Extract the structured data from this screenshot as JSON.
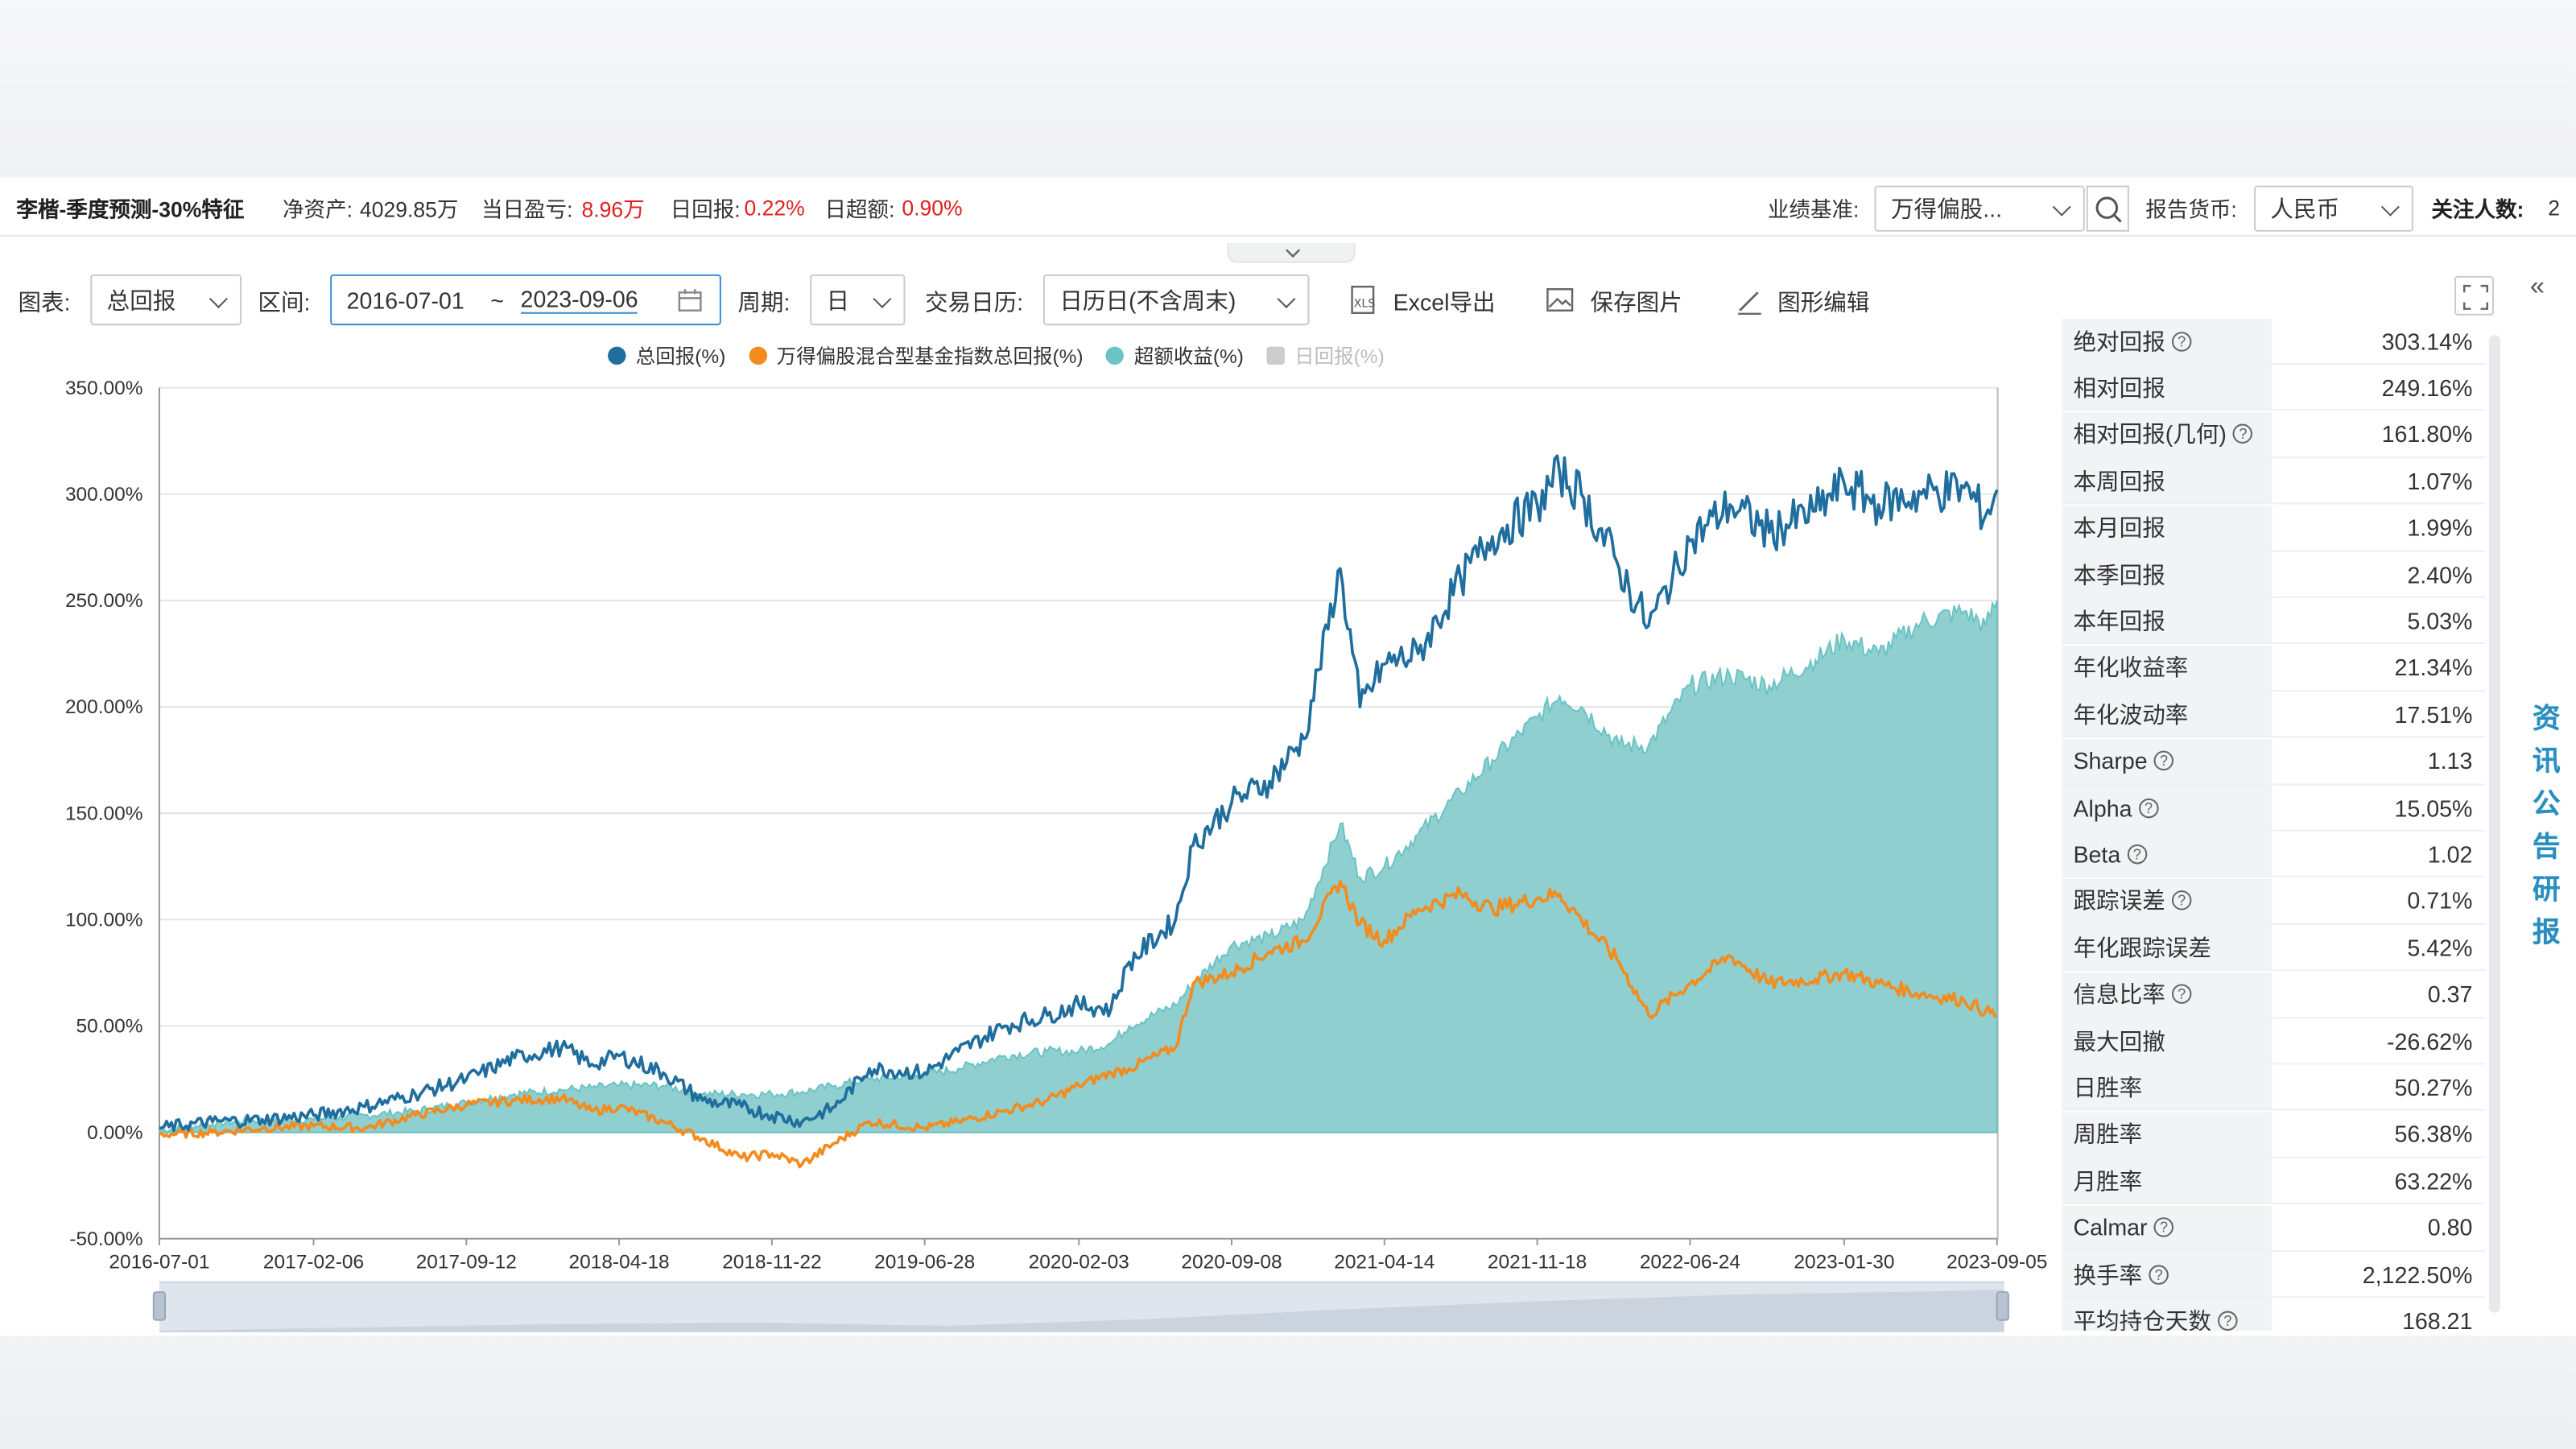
{
  "fund": {
    "name": "李楷-季度预测-30%特征",
    "net_assets_label": "净资产:",
    "net_assets": "4029.85万",
    "daily_pnl_label": "当日盈亏:",
    "daily_pnl": "8.96万",
    "daily_return_label": "日回报:",
    "daily_return": "0.22%",
    "daily_excess_label": "日超额:",
    "daily_excess": "0.90%"
  },
  "top_right": {
    "benchmark_label": "业绩基准:",
    "benchmark_value": "万得偏股...",
    "currency_label": "报告货币:",
    "currency_value": "人民币",
    "followers_label": "关注人数:",
    "followers": "2"
  },
  "toolbar": {
    "chart_label": "图表:",
    "chart_value": "总回报",
    "range_label": "区间:",
    "range_start": "2016-07-01",
    "range_sep": "~",
    "range_end": "2023-09-06",
    "period_label": "周期:",
    "period_value": "日",
    "calendar_label": "交易日历:",
    "calendar_value": "日历日(不含周末)",
    "excel_label": "Excel导出",
    "save_image_label": "保存图片",
    "edit_chart_label": "图形编辑"
  },
  "colors": {
    "total_return": "#1f6e9e",
    "benchmark": "#f28c1f",
    "excess": "#6cc3c4",
    "daily": "#cccccc"
  },
  "stats": [
    {
      "name": "绝对回报",
      "help": true,
      "value": "303.14%"
    },
    {
      "name": "相对回报",
      "help": false,
      "value": "249.16%"
    },
    {
      "name": "相对回报(几何)",
      "help": true,
      "value": "161.80%"
    },
    {
      "name": "本周回报",
      "help": false,
      "value": "1.07%"
    },
    {
      "name": "本月回报",
      "help": false,
      "value": "1.99%"
    },
    {
      "name": "本季回报",
      "help": false,
      "value": "2.40%"
    },
    {
      "name": "本年回报",
      "help": false,
      "value": "5.03%"
    },
    {
      "name": "年化收益率",
      "help": false,
      "value": "21.34%"
    },
    {
      "name": "年化波动率",
      "help": false,
      "value": "17.51%"
    },
    {
      "name": "Sharpe",
      "help": true,
      "value": "1.13"
    },
    {
      "name": "Alpha",
      "help": true,
      "value": "15.05%"
    },
    {
      "name": "Beta",
      "help": true,
      "value": "1.02"
    },
    {
      "name": "跟踪误差",
      "help": true,
      "value": "0.71%"
    },
    {
      "name": "年化跟踪误差",
      "help": false,
      "value": "5.42%"
    },
    {
      "name": "信息比率",
      "help": true,
      "value": "0.37"
    },
    {
      "name": "最大回撤",
      "help": false,
      "value": "-26.62%"
    },
    {
      "name": "日胜率",
      "help": false,
      "value": "50.27%"
    },
    {
      "name": "周胜率",
      "help": false,
      "value": "56.38%"
    },
    {
      "name": "月胜率",
      "help": false,
      "value": "63.22%"
    },
    {
      "name": "Calmar",
      "help": true,
      "value": "0.80"
    },
    {
      "name": "换手率",
      "help": true,
      "value": "2,122.50%"
    },
    {
      "name": "平均持仓天数",
      "help": true,
      "value": "168.21"
    }
  ],
  "side_tabs": [
    "资",
    "讯",
    "公",
    "告",
    "研",
    "报"
  ],
  "chart_data": {
    "type": "line",
    "x_type": "date",
    "x_tick_labels": [
      "2016-07-01",
      "2017-02-06",
      "2017-09-12",
      "2018-04-18",
      "2018-11-22",
      "2019-06-28",
      "2020-02-03",
      "2020-09-08",
      "2021-04-14",
      "2021-11-18",
      "2022-06-24",
      "2023-01-30",
      "2023-09-05"
    ],
    "x_range": [
      "2016-07-01",
      "2023-09-06"
    ],
    "ylim": [
      -50,
      350
    ],
    "y_ticks": [
      -50,
      0,
      50,
      100,
      150,
      200,
      250,
      300,
      350
    ],
    "y_tick_labels": [
      "-50.00%",
      "0.00%",
      "50.00%",
      "100.00%",
      "150.00%",
      "200.00%",
      "250.00%",
      "300.00%",
      "350.00%"
    ],
    "grid": true,
    "legend_position": "top",
    "series": [
      {
        "name": "总回报(%)",
        "kind": "line",
        "color": "#1f6e9e",
        "points": [
          [
            "2016-07-01",
            2
          ],
          [
            "2016-09-15",
            5
          ],
          [
            "2016-11-25",
            6
          ],
          [
            "2017-02-06",
            8
          ],
          [
            "2017-04-20",
            12
          ],
          [
            "2017-07-01",
            18
          ],
          [
            "2017-09-12",
            25
          ],
          [
            "2017-11-20",
            35
          ],
          [
            "2018-01-26",
            40
          ],
          [
            "2018-03-10",
            32
          ],
          [
            "2018-04-18",
            36
          ],
          [
            "2018-06-20",
            28
          ],
          [
            "2018-08-15",
            15
          ],
          [
            "2018-10-10",
            12
          ],
          [
            "2018-11-22",
            8
          ],
          [
            "2019-01-04",
            5
          ],
          [
            "2019-02-20",
            12
          ],
          [
            "2019-04-10",
            30
          ],
          [
            "2019-06-28",
            28
          ],
          [
            "2019-08-15",
            38
          ],
          [
            "2019-10-20",
            50
          ],
          [
            "2019-12-20",
            55
          ],
          [
            "2020-02-03",
            60
          ],
          [
            "2020-03-20",
            58
          ],
          [
            "2020-04-15",
            80
          ],
          [
            "2020-06-20",
            100
          ],
          [
            "2020-07-15",
            135
          ],
          [
            "2020-09-08",
            155
          ],
          [
            "2020-11-01",
            165
          ],
          [
            "2020-12-20",
            185
          ],
          [
            "2021-02-10",
            265
          ],
          [
            "2021-03-10",
            200
          ],
          [
            "2021-04-14",
            220
          ],
          [
            "2021-06-01",
            225
          ],
          [
            "2021-08-01",
            260
          ],
          [
            "2021-09-15",
            280
          ],
          [
            "2021-11-18",
            295
          ],
          [
            "2021-12-20",
            310
          ],
          [
            "2022-01-20",
            300
          ],
          [
            "2022-03-15",
            265
          ],
          [
            "2022-04-26",
            238
          ],
          [
            "2022-06-24",
            278
          ],
          [
            "2022-08-20",
            295
          ],
          [
            "2022-10-15",
            282
          ],
          [
            "2022-12-20",
            292
          ],
          [
            "2023-01-30",
            305
          ],
          [
            "2023-03-20",
            295
          ],
          [
            "2023-05-20",
            300
          ],
          [
            "2023-07-20",
            303
          ],
          [
            "2023-08-20",
            290
          ],
          [
            "2023-09-05",
            302
          ]
        ]
      },
      {
        "name": "万得偏股混合型基金指数总回报(%)",
        "kind": "line",
        "color": "#f28c1f",
        "points": [
          [
            "2016-07-01",
            -1
          ],
          [
            "2016-09-15",
            0
          ],
          [
            "2016-11-25",
            2
          ],
          [
            "2017-02-06",
            3
          ],
          [
            "2017-04-20",
            2
          ],
          [
            "2017-07-01",
            8
          ],
          [
            "2017-09-12",
            13
          ],
          [
            "2017-11-20",
            15
          ],
          [
            "2018-01-26",
            16
          ],
          [
            "2018-03-10",
            10
          ],
          [
            "2018-04-18",
            12
          ],
          [
            "2018-06-20",
            5
          ],
          [
            "2018-08-15",
            -3
          ],
          [
            "2018-10-10",
            -12
          ],
          [
            "2018-11-22",
            -10
          ],
          [
            "2019-01-04",
            -15
          ],
          [
            "2019-02-20",
            -5
          ],
          [
            "2019-04-10",
            5
          ],
          [
            "2019-06-28",
            2
          ],
          [
            "2019-08-15",
            5
          ],
          [
            "2019-10-20",
            10
          ],
          [
            "2019-12-20",
            15
          ],
          [
            "2020-02-03",
            22
          ],
          [
            "2020-03-20",
            28
          ],
          [
            "2020-04-15",
            30
          ],
          [
            "2020-06-20",
            40
          ],
          [
            "2020-07-15",
            70
          ],
          [
            "2020-09-08",
            75
          ],
          [
            "2020-11-01",
            85
          ],
          [
            "2020-12-20",
            90
          ],
          [
            "2021-02-10",
            118
          ],
          [
            "2021-03-10",
            98
          ],
          [
            "2021-04-14",
            90
          ],
          [
            "2021-06-01",
            105
          ],
          [
            "2021-08-01",
            112
          ],
          [
            "2021-09-15",
            105
          ],
          [
            "2021-11-18",
            110
          ],
          [
            "2021-12-20",
            112
          ],
          [
            "2022-01-20",
            100
          ],
          [
            "2022-03-15",
            80
          ],
          [
            "2022-04-26",
            55
          ],
          [
            "2022-06-24",
            70
          ],
          [
            "2022-08-20",
            83
          ],
          [
            "2022-10-15",
            70
          ],
          [
            "2022-12-20",
            72
          ],
          [
            "2023-01-30",
            75
          ],
          [
            "2023-03-20",
            70
          ],
          [
            "2023-05-20",
            65
          ],
          [
            "2023-07-20",
            62
          ],
          [
            "2023-08-20",
            57
          ],
          [
            "2023-09-05",
            55
          ]
        ]
      },
      {
        "name": "超额收益(%)",
        "kind": "area",
        "color": "#6cc3c4",
        "points": [
          [
            "2016-07-01",
            1
          ],
          [
            "2016-09-15",
            4
          ],
          [
            "2016-11-25",
            6
          ],
          [
            "2017-02-06",
            6
          ],
          [
            "2017-04-20",
            8
          ],
          [
            "2017-07-01",
            10
          ],
          [
            "2017-09-12",
            14
          ],
          [
            "2017-11-20",
            18
          ],
          [
            "2018-01-26",
            20
          ],
          [
            "2018-03-10",
            21
          ],
          [
            "2018-04-18",
            22
          ],
          [
            "2018-06-20",
            22
          ],
          [
            "2018-08-15",
            18
          ],
          [
            "2018-10-10",
            18
          ],
          [
            "2018-11-22",
            18
          ],
          [
            "2019-01-04",
            19
          ],
          [
            "2019-02-20",
            22
          ],
          [
            "2019-04-10",
            25
          ],
          [
            "2019-06-28",
            27
          ],
          [
            "2019-08-15",
            30
          ],
          [
            "2019-10-20",
            36
          ],
          [
            "2019-12-20",
            38
          ],
          [
            "2020-02-03",
            38
          ],
          [
            "2020-03-20",
            42
          ],
          [
            "2020-04-15",
            50
          ],
          [
            "2020-06-20",
            60
          ],
          [
            "2020-07-15",
            70
          ],
          [
            "2020-09-08",
            88
          ],
          [
            "2020-11-01",
            92
          ],
          [
            "2020-12-20",
            100
          ],
          [
            "2021-02-10",
            145
          ],
          [
            "2021-03-10",
            120
          ],
          [
            "2021-04-14",
            125
          ],
          [
            "2021-06-01",
            140
          ],
          [
            "2021-08-01",
            160
          ],
          [
            "2021-09-15",
            175
          ],
          [
            "2021-11-18",
            195
          ],
          [
            "2021-12-20",
            205
          ],
          [
            "2022-01-20",
            200
          ],
          [
            "2022-03-15",
            182
          ],
          [
            "2022-04-26",
            182
          ],
          [
            "2022-06-24",
            210
          ],
          [
            "2022-08-20",
            215
          ],
          [
            "2022-10-15",
            210
          ],
          [
            "2022-12-20",
            222
          ],
          [
            "2023-01-30",
            232
          ],
          [
            "2023-03-20",
            225
          ],
          [
            "2023-05-20",
            240
          ],
          [
            "2023-07-20",
            245
          ],
          [
            "2023-08-20",
            238
          ],
          [
            "2023-09-05",
            250
          ]
        ]
      },
      {
        "name": "日回报(%)",
        "kind": "disabled",
        "color": "#cccccc",
        "points": []
      }
    ]
  }
}
